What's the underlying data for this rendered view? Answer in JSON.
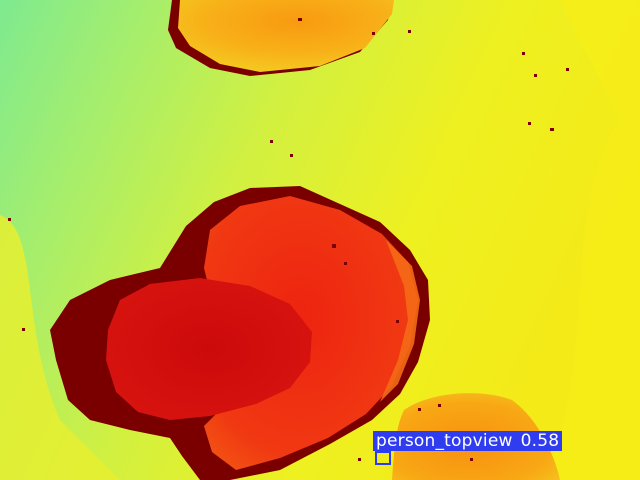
{
  "image": {
    "type": "depth-colormap",
    "palette": {
      "far_cyan": "#7eea90",
      "mid_green": "#c6f04a",
      "near_yellow": "#f2ee1c",
      "orange": "#f8a012",
      "red": "#f03010",
      "dark_red": "#cc0c0c",
      "shadow": "#7a0000"
    }
  },
  "detection": {
    "label": "person_topview",
    "score": "0.58",
    "box_color": "#2f3cf0",
    "label_text_color": "#ffffff"
  }
}
